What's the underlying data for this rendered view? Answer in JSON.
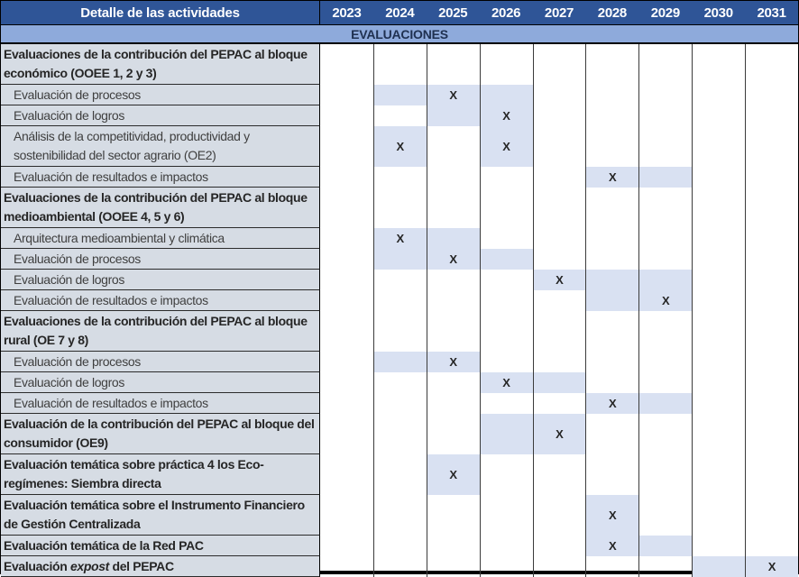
{
  "table": {
    "label_header": "Detalle de las actividades",
    "banner": "EVALUACIONES",
    "years": [
      "2023",
      "2024",
      "2025",
      "2026",
      "2027",
      "2028",
      "2029",
      "2030",
      "2031"
    ],
    "mark": "X",
    "rows": [
      {
        "style": "section",
        "lines": 2,
        "label": "Evaluaciones de la contribución del PEPAC al bloque económico (OOEE 1, 2 y 3)",
        "shaded": [],
        "marks": []
      },
      {
        "style": "item",
        "lines": 1,
        "label": "Evaluación de procesos",
        "shaded": [
          "2024",
          "2025",
          "2026"
        ],
        "marks": [
          "2025"
        ]
      },
      {
        "style": "item",
        "lines": 1,
        "label": "Evaluación de logros",
        "shaded": [
          "2025",
          "2026"
        ],
        "marks": [
          "2026"
        ]
      },
      {
        "style": "item",
        "lines": 2,
        "label": "Análisis de la competitividad, productividad y sostenibilidad del sector agrario (OE2)",
        "shaded": [
          "2024",
          "2026"
        ],
        "marks": [
          "2024",
          "2026"
        ]
      },
      {
        "style": "item",
        "lines": 1,
        "label": "Evaluación de resultados e impactos",
        "shaded": [
          "2028",
          "2029"
        ],
        "marks": [
          "2028"
        ]
      },
      {
        "style": "section",
        "lines": 2,
        "label": "Evaluaciones de la contribución del PEPAC al bloque medioambiental (OOEE 4, 5 y 6)",
        "shaded": [],
        "marks": []
      },
      {
        "style": "item",
        "lines": 1,
        "label": "Arquitectura medioambiental y climática",
        "shaded": [
          "2024",
          "2025"
        ],
        "marks": [
          "2024"
        ]
      },
      {
        "style": "item",
        "lines": 1,
        "label": "Evaluación de procesos",
        "shaded": [
          "2024",
          "2025",
          "2026"
        ],
        "marks": [
          "2025"
        ]
      },
      {
        "style": "item",
        "lines": 1,
        "label": "Evaluación de logros",
        "shaded": [
          "2027",
          "2028",
          "2029"
        ],
        "marks": [
          "2027"
        ]
      },
      {
        "style": "item",
        "lines": 1,
        "label": "Evaluación de resultados e impactos",
        "shaded": [
          "2028",
          "2029"
        ],
        "marks": [
          "2029"
        ]
      },
      {
        "style": "section",
        "lines": 2,
        "label": "Evaluaciones de la contribución del PEPAC al bloque rural (OE 7 y 8)",
        "shaded": [],
        "marks": []
      },
      {
        "style": "item",
        "lines": 1,
        "label": "Evaluación de procesos",
        "shaded": [
          "2024",
          "2025"
        ],
        "marks": [
          "2025"
        ]
      },
      {
        "style": "item",
        "lines": 1,
        "label": "Evaluación de logros",
        "shaded": [
          "2026",
          "2027"
        ],
        "marks": [
          "2026"
        ]
      },
      {
        "style": "item",
        "lines": 1,
        "label": "Evaluación de resultados e impactos",
        "shaded": [
          "2028",
          "2029"
        ],
        "marks": [
          "2028"
        ]
      },
      {
        "style": "section",
        "lines": 2,
        "label": "Evaluación de la contribución del PEPAC al bloque del consumidor (OE9)",
        "shaded": [
          "2026",
          "2027"
        ],
        "marks": [
          "2027"
        ]
      },
      {
        "style": "section",
        "lines": 2,
        "label": "Evaluación temática sobre práctica 4 los Eco-regímenes: Siembra directa",
        "shaded": [
          "2025"
        ],
        "marks": [
          "2025"
        ]
      },
      {
        "style": "section",
        "lines": 2,
        "label": "Evaluación temática sobre el Instrumento Financiero de Gestión Centralizada",
        "shaded": [
          "2028"
        ],
        "marks": [
          "2028"
        ]
      },
      {
        "style": "section",
        "lines": 1,
        "label": "Evaluación temática de la Red PAC",
        "shaded": [
          "2028",
          "2029"
        ],
        "marks": [
          "2028"
        ]
      },
      {
        "style": "section",
        "lines": 1,
        "label": "Evaluación expost del PEPAC",
        "label_parts": [
          {
            "text": "Evaluación ",
            "italic": false
          },
          {
            "text": "expost",
            "italic": true
          },
          {
            "text": " del PEPAC",
            "italic": false
          }
        ],
        "shaded": [
          "2030",
          "2031"
        ],
        "marks": [
          "2031"
        ]
      }
    ]
  },
  "colors": {
    "header_bg": "#2F5597",
    "header_text": "#FFFFFF",
    "banner_bg": "#8EAADB",
    "banner_text": "#1F3050",
    "label_bg": "#D6DCE4",
    "shaded_cell": "#D9E1F2",
    "grid_line": "#3B3B3B",
    "mark_color": "#262626"
  }
}
